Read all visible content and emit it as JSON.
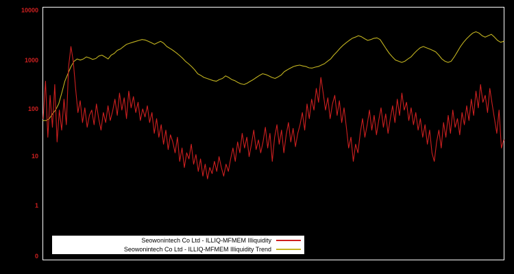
{
  "axis": {
    "y_labels": [
      "10000",
      "1000",
      "100",
      "10",
      "1",
      "0"
    ]
  },
  "legend": {
    "items": [
      {
        "label": "Seowonintech Co Ltd - ILLIQ-MFMEM Illiquidity",
        "color": "#cf2020"
      },
      {
        "label": "Seowonintech Co Ltd - ILLIQ-MFMEM Illiquidity Trend",
        "color": "#c3b420"
      }
    ]
  },
  "colors": {
    "background": "#000000",
    "frame": "#ffffff",
    "axis_text": "#cf2020",
    "series_red": "#cf2020",
    "series_yellow": "#c3b420"
  },
  "chart_data": {
    "type": "line",
    "yscale": "log",
    "ylim": [
      1,
      10000
    ],
    "y_ticks": [
      10000,
      1000,
      100,
      10,
      1,
      0
    ],
    "grid": false,
    "legend_position": "bottom-center",
    "series": [
      {
        "name": "Seowonintech Co Ltd - ILLIQ-MFMEM Illiquidity",
        "color": "#cf2020",
        "values": [
          60,
          350,
          25,
          180,
          40,
          300,
          20,
          90,
          35,
          150,
          45,
          700,
          1800,
          900,
          250,
          80,
          140,
          50,
          100,
          40,
          70,
          90,
          45,
          120,
          60,
          35,
          80,
          50,
          110,
          55,
          85,
          150,
          70,
          200,
          90,
          160,
          60,
          220,
          100,
          170,
          80,
          130,
          55,
          95,
          65,
          110,
          50,
          80,
          30,
          60,
          25,
          45,
          18,
          35,
          14,
          28,
          20,
          12,
          25,
          8,
          15,
          6,
          12,
          9,
          18,
          7,
          11,
          5,
          9,
          4,
          7,
          3.5,
          6,
          4.5,
          8,
          5,
          10,
          6,
          4,
          7,
          5,
          9,
          15,
          8,
          20,
          12,
          30,
          15,
          25,
          10,
          18,
          35,
          14,
          22,
          12,
          20,
          40,
          15,
          30,
          8,
          25,
          45,
          18,
          35,
          12,
          28,
          50,
          20,
          38,
          16,
          30,
          45,
          80,
          35,
          120,
          60,
          150,
          90,
          250,
          130,
          420,
          200,
          90,
          160,
          60,
          120,
          180,
          70,
          140,
          50,
          100,
          40,
          15,
          25,
          8,
          18,
          12,
          30,
          60,
          25,
          45,
          90,
          35,
          70,
          28,
          55,
          100,
          40,
          75,
          30,
          60,
          110,
          50,
          150,
          70,
          200,
          90,
          130,
          55,
          100,
          45,
          80,
          35,
          60,
          25,
          45,
          18,
          35,
          12,
          8,
          20,
          35,
          15,
          50,
          25,
          70,
          30,
          90,
          40,
          60,
          28,
          80,
          45,
          110,
          55,
          150,
          70,
          220,
          100,
          300,
          130,
          180,
          80,
          250,
          120,
          60,
          30,
          90,
          15,
          22
        ]
      },
      {
        "name": "Seowonintech Co Ltd - ILLIQ-MFMEM Illiquidity Trend",
        "color": "#c3b420",
        "values": [
          55,
          55,
          60,
          75,
          90,
          120,
          200,
          350,
          500,
          700,
          900,
          1000,
          950,
          1000,
          1100,
          1050,
          980,
          1020,
          1150,
          1200,
          1100,
          1000,
          1200,
          1300,
          1500,
          1600,
          1800,
          2000,
          2100,
          2200,
          2300,
          2400,
          2500,
          2450,
          2300,
          2150,
          2000,
          2150,
          2300,
          2100,
          1800,
          1650,
          1500,
          1350,
          1200,
          1050,
          900,
          800,
          700,
          600,
          500,
          460,
          420,
          400,
          380,
          360,
          350,
          380,
          400,
          450,
          420,
          380,
          360,
          330,
          310,
          300,
          320,
          350,
          380,
          420,
          460,
          500,
          480,
          450,
          420,
          400,
          430,
          470,
          550,
          600,
          650,
          700,
          730,
          750,
          720,
          700,
          660,
          650,
          680,
          700,
          750,
          800,
          900,
          1000,
          1200,
          1400,
          1650,
          1900,
          2150,
          2400,
          2650,
          2800,
          3000,
          2850,
          2600,
          2400,
          2500,
          2650,
          2700,
          2500,
          2000,
          1600,
          1300,
          1100,
          950,
          900,
          850,
          900,
          1000,
          1100,
          1300,
          1500,
          1700,
          1800,
          1700,
          1600,
          1500,
          1400,
          1200,
          1000,
          900,
          850,
          900,
          1100,
          1400,
          1800,
          2200,
          2600,
          3000,
          3400,
          3600,
          3400,
          3000,
          2800,
          3000,
          3200,
          2800,
          2400,
          2200,
          2300
        ]
      }
    ]
  }
}
